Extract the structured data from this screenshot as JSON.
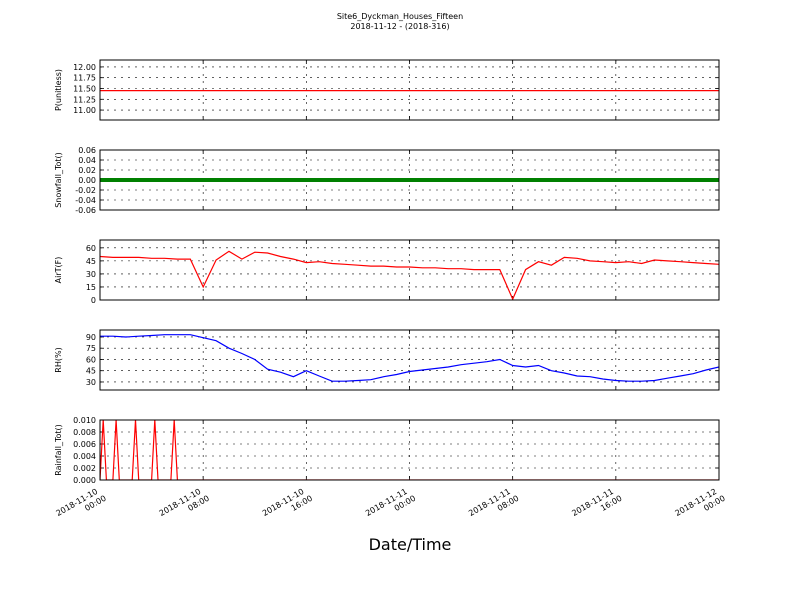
{
  "title": "Site6_Dyckman_Houses_Fifteen",
  "subtitle": "2018-11-12 - (2018-316)",
  "xlabel": "Date/Time",
  "x": [
    "2018-11-10 00:00",
    "2018-11-10 01:00",
    "2018-11-10 02:00",
    "2018-11-10 03:00",
    "2018-11-10 04:00",
    "2018-11-10 05:00",
    "2018-11-10 06:00",
    "2018-11-10 07:00",
    "2018-11-10 08:00",
    "2018-11-10 09:00",
    "2018-11-10 10:00",
    "2018-11-10 11:00",
    "2018-11-10 12:00",
    "2018-11-10 13:00",
    "2018-11-10 14:00",
    "2018-11-10 15:00",
    "2018-11-10 16:00",
    "2018-11-10 17:00",
    "2018-11-10 18:00",
    "2018-11-10 19:00",
    "2018-11-10 20:00",
    "2018-11-10 21:00",
    "2018-11-10 22:00",
    "2018-11-10 23:00",
    "2018-11-11 00:00",
    "2018-11-11 01:00",
    "2018-11-11 02:00",
    "2018-11-11 03:00",
    "2018-11-11 04:00",
    "2018-11-11 05:00",
    "2018-11-11 06:00",
    "2018-11-11 07:00",
    "2018-11-11 08:00",
    "2018-11-11 09:00",
    "2018-11-11 10:00",
    "2018-11-11 11:00",
    "2018-11-11 12:00",
    "2018-11-11 13:00",
    "2018-11-11 14:00",
    "2018-11-11 15:00",
    "2018-11-11 16:00",
    "2018-11-11 17:00",
    "2018-11-11 18:00",
    "2018-11-11 19:00",
    "2018-11-11 20:00",
    "2018-11-11 21:00",
    "2018-11-11 22:00",
    "2018-11-11 23:00",
    "2018-11-12 00:00"
  ],
  "xlim": [
    "2018-11-10 00:00",
    "2018-11-12 00:00"
  ],
  "xticks": [
    "2018-11-10 00:00",
    "2018-11-10 08:00",
    "2018-11-10 16:00",
    "2018-11-11 00:00",
    "2018-11-11 08:00",
    "2018-11-11 16:00",
    "2018-11-12 00:00"
  ],
  "chart_data": [
    {
      "type": "line",
      "ylabel": "P(unitless)",
      "ylim": [
        10.77,
        12.16
      ],
      "grid": true,
      "yticks": [
        {
          "value": 11.0,
          "label": "11.00"
        },
        {
          "value": 11.25,
          "label": "11.25"
        },
        {
          "value": 11.5,
          "label": "11.50"
        },
        {
          "value": 11.75,
          "label": "11.75"
        },
        {
          "value": 12.0,
          "label": "12.00"
        }
      ],
      "series": [
        {
          "color": "#ff0000",
          "values": [
            11.45,
            11.45,
            11.45,
            11.45,
            11.45,
            11.45,
            11.45,
            11.45,
            11.45,
            11.45,
            11.45,
            11.45,
            11.45,
            11.45,
            11.45,
            11.45,
            11.45,
            11.45,
            11.45,
            11.45,
            11.45,
            11.45,
            11.45,
            11.45,
            11.45,
            11.45,
            11.45,
            11.45,
            11.45,
            11.45,
            11.45,
            11.45,
            11.45,
            11.45,
            11.45,
            11.45,
            11.45,
            11.45,
            11.45,
            11.45,
            11.45,
            11.45,
            11.45,
            11.45,
            11.45,
            11.45,
            11.45,
            11.45,
            11.45
          ]
        }
      ]
    },
    {
      "type": "line",
      "ylabel": "Snowfall_Tot()",
      "ylim": [
        -0.06,
        0.06
      ],
      "grid": true,
      "yticks": [
        {
          "value": -0.06,
          "label": "-0.06"
        },
        {
          "value": -0.04,
          "label": "-0.04"
        },
        {
          "value": -0.02,
          "label": "-0.02"
        },
        {
          "value": 0,
          "label": "0.00"
        },
        {
          "value": 0.02,
          "label": "0.02"
        },
        {
          "value": 0.04,
          "label": "0.04"
        },
        {
          "value": 0.06,
          "label": "0.06"
        }
      ],
      "series": [
        {
          "color": "#008000",
          "values": [
            0,
            0,
            0,
            0,
            0,
            0,
            0,
            0,
            0,
            0,
            0,
            0,
            0,
            0,
            0,
            0,
            0,
            0,
            0,
            0,
            0,
            0,
            0,
            0,
            0,
            0,
            0,
            0,
            0,
            0,
            0,
            0,
            0,
            0,
            0,
            0,
            0,
            0,
            0,
            0,
            0,
            0,
            0,
            0,
            0,
            0,
            0,
            0,
            0
          ]
        }
      ]
    },
    {
      "type": "line",
      "ylabel": "AirT(F)",
      "ylim": [
        0,
        69
      ],
      "grid": true,
      "yticks": [
        0,
        15,
        30,
        45,
        60
      ],
      "series": [
        {
          "color": "#ff0000",
          "values": [
            50,
            49,
            49,
            49,
            48,
            48,
            47,
            47,
            15,
            46,
            56,
            47,
            55,
            54,
            50,
            47,
            43,
            44,
            42,
            41,
            40,
            39,
            39,
            38,
            38,
            37,
            37,
            36,
            36,
            35,
            35,
            35,
            1,
            35,
            44,
            40,
            49,
            48,
            45,
            44,
            43,
            44,
            42,
            46,
            45,
            44,
            43,
            42,
            41
          ]
        }
      ]
    },
    {
      "type": "line",
      "ylabel": "RH(%)",
      "ylim": [
        19.3,
        99.3
      ],
      "grid": true,
      "yticks": [
        30,
        45,
        60,
        75,
        90
      ],
      "series": [
        {
          "color": "#0000ff",
          "values": [
            91,
            91,
            90,
            91,
            92,
            93,
            93,
            93,
            89,
            85,
            75,
            68,
            60,
            47,
            43,
            37,
            45,
            38,
            31,
            31,
            32,
            33,
            37,
            40,
            44,
            46,
            48,
            50,
            53,
            55,
            57,
            60,
            52,
            50,
            52,
            45,
            42,
            38,
            37,
            34,
            32,
            31,
            31,
            32,
            35,
            38,
            41,
            46,
            50
          ]
        }
      ]
    },
    {
      "type": "line",
      "ylabel": "Rainfall_Tot()",
      "ylim": [
        0,
        0.01
      ],
      "grid": true,
      "yticks": [
        {
          "value": 0,
          "label": "0.000"
        },
        {
          "value": 0.002,
          "label": "0.002"
        },
        {
          "value": 0.004,
          "label": "0.004"
        },
        {
          "value": 0.006,
          "label": "0.006"
        },
        {
          "value": 0.008,
          "label": "0.008"
        },
        {
          "value": 0.01,
          "label": "0.010"
        }
      ],
      "x": [
        "2018-11-10 00:00",
        "2018-11-10 00:15",
        "2018-11-10 00:30",
        "2018-11-10 01:00",
        "2018-11-10 01:15",
        "2018-11-10 01:30",
        "2018-11-10 02:30",
        "2018-11-10 02:45",
        "2018-11-10 03:00",
        "2018-11-10 04:00",
        "2018-11-10 04:15",
        "2018-11-10 04:30",
        "2018-11-10 05:30",
        "2018-11-10 05:45",
        "2018-11-10 06:00",
        "2018-11-12 00:00"
      ],
      "series": [
        {
          "color": "#ff0000",
          "values": [
            0,
            0.01,
            0,
            0,
            0.01,
            0,
            0,
            0.01,
            0,
            0,
            0.01,
            0,
            0,
            0.01,
            0,
            0
          ]
        }
      ]
    }
  ]
}
